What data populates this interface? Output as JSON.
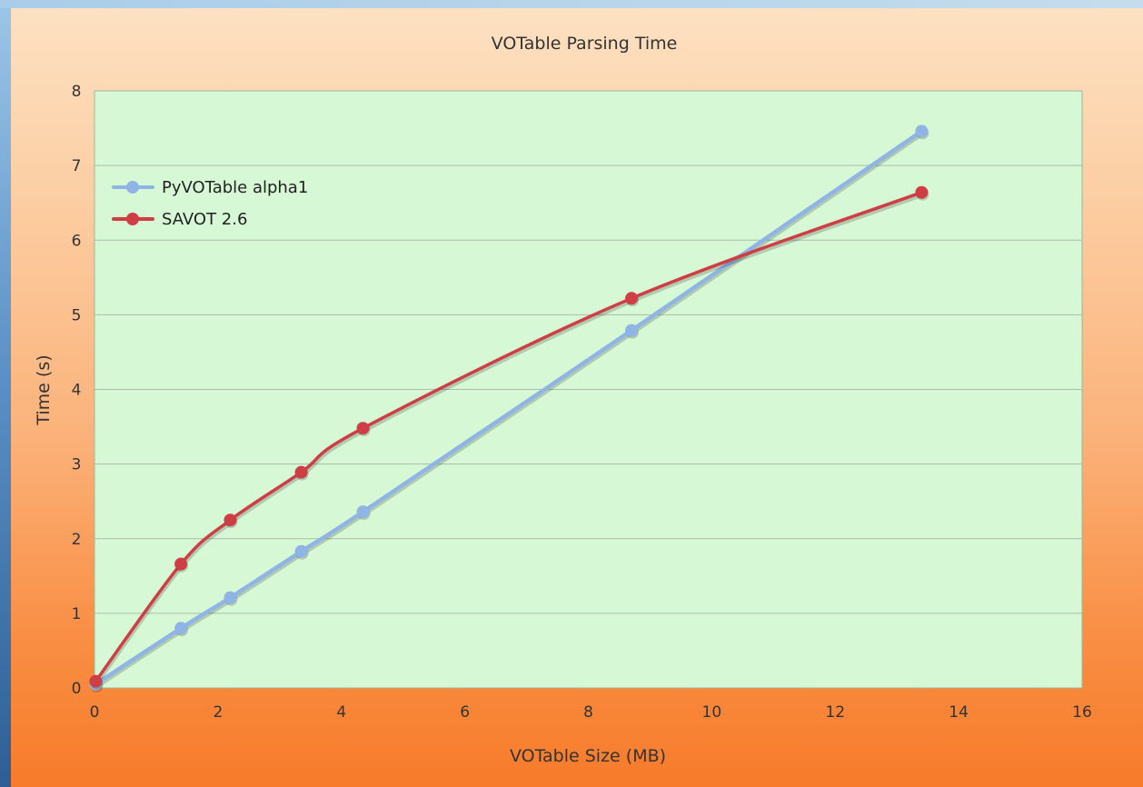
{
  "chart_data": {
    "type": "line",
    "title": "VOTable Parsing Time",
    "xlabel": "VOTable Size (MB)",
    "ylabel": "Time (s)",
    "xlim": [
      0,
      16
    ],
    "ylim": [
      0,
      8
    ],
    "xticks": [
      "0",
      "2",
      "4",
      "6",
      "8",
      "10",
      "12",
      "14",
      "16"
    ],
    "yticks": [
      "0",
      "1",
      "2",
      "3",
      "4",
      "5",
      "6",
      "7",
      "8"
    ],
    "grid": "horizontal",
    "legend_position": "top-left",
    "series": [
      {
        "name": "PyVOTable alpha1",
        "color": "#8fb5e6",
        "x": [
          0.02,
          1.4,
          2.2,
          3.35,
          4.35,
          8.7,
          13.4
        ],
        "y": [
          0.05,
          0.8,
          1.21,
          1.83,
          2.36,
          4.79,
          7.46
        ]
      },
      {
        "name": "SAVOT 2.6",
        "color": "#cf3d45",
        "x": [
          0.02,
          1.4,
          2.2,
          3.35,
          4.35,
          8.7,
          13.4
        ],
        "y": [
          0.09,
          1.66,
          2.25,
          2.89,
          3.48,
          5.22,
          6.64
        ]
      }
    ]
  }
}
